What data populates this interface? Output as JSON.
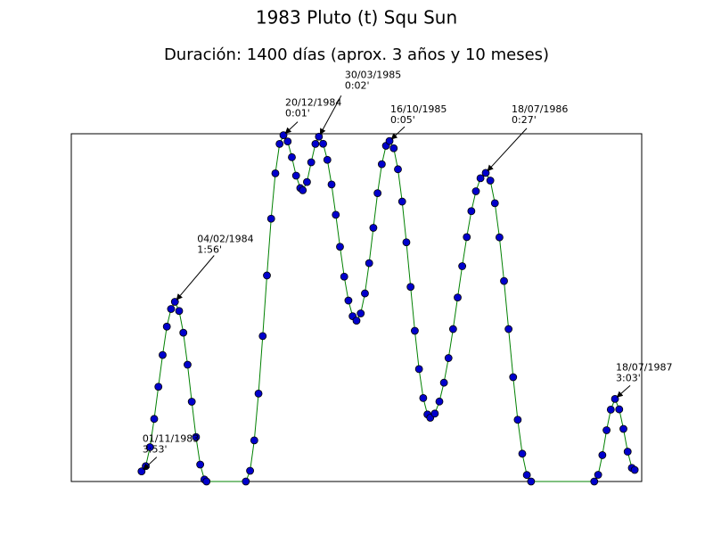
{
  "chart_data": {
    "type": "line",
    "title": "1983 Pluto (t) Squ Sun",
    "subtitle": "Duración: 1400 días (aprox. 3 años y 10 meses)",
    "line_color": "#008000",
    "marker_color": "#0000cc",
    "xlim": [
      -200,
      1424
    ],
    "ylim": [
      240,
      0
    ],
    "x": [
      0,
      12,
      24,
      36,
      48,
      60,
      72,
      84,
      95,
      107,
      119,
      131,
      143,
      155,
      167,
      179,
      185,
      297,
      309,
      321,
      333,
      345,
      357,
      369,
      381,
      393,
      404,
      416,
      428,
      440,
      452,
      459,
      471,
      483,
      495,
      505,
      517,
      529,
      541,
      553,
      565,
      577,
      589,
      601,
      612,
      624,
      636,
      648,
      660,
      672,
      684,
      696,
      706,
      718,
      730,
      742,
      754,
      766,
      778,
      790,
      802,
      814,
      822,
      835,
      848,
      861,
      874,
      887,
      900,
      913,
      926,
      939,
      952,
      965,
      980,
      993,
      1006,
      1019,
      1032,
      1045,
      1058,
      1071,
      1084,
      1097,
      1109,
      1289,
      1300,
      1312,
      1324,
      1336,
      1348,
      1360,
      1372,
      1384,
      1396,
      1404
    ],
    "values": [
      233,
      229.4,
      216.3,
      196.8,
      174.6,
      152.7,
      133.1,
      120.9,
      116,
      122.3,
      137.3,
      159.4,
      184.9,
      209.3,
      228.3,
      238.6,
      240,
      240,
      232.6,
      211.6,
      179.3,
      139.6,
      97.8,
      58.6,
      27.3,
      7.0,
      1,
      5.3,
      16.2,
      28.9,
      37.5,
      39,
      33.3,
      19.7,
      7.0,
      2,
      6.9,
      18.0,
      35.0,
      55.9,
      78.0,
      98.6,
      115.1,
      125.9,
      129,
      124.0,
      110.2,
      89.3,
      64.9,
      41.0,
      21.0,
      8.3,
      5,
      10.0,
      24.5,
      46.8,
      74.9,
      105.7,
      136.0,
      162.4,
      182.4,
      193.7,
      196,
      193.1,
      184.8,
      171.8,
      154.8,
      134.8,
      113.0,
      91.4,
      71.3,
      53.4,
      39.7,
      30.7,
      27,
      32.3,
      47.9,
      71.5,
      101.6,
      134.8,
      168.0,
      197.4,
      220.8,
      235.5,
      240,
      240,
      235.4,
      221.8,
      204.6,
      190.4,
      183,
      190.2,
      203.7,
      219.4,
      230.6,
      232
    ],
    "annotations": [
      {
        "date": "01/11/1983",
        "label": "3:53'",
        "x": 0,
        "y": 233
      },
      {
        "date": "04/02/1984",
        "label": "1:56'",
        "x": 95,
        "y": 116
      },
      {
        "date": "20/12/1984",
        "label": "0:01'",
        "x": 404,
        "y": 1
      },
      {
        "date": "30/03/1985",
        "label": "0:02'",
        "x": 505,
        "y": 2
      },
      {
        "date": "16/10/1985",
        "label": "0:05'",
        "x": 706,
        "y": 5
      },
      {
        "date": "18/07/1986",
        "label": "0:27'",
        "x": 980,
        "y": 27
      },
      {
        "date": "18/07/1987",
        "label": "3:03'",
        "x": 1348,
        "y": 183
      }
    ]
  }
}
